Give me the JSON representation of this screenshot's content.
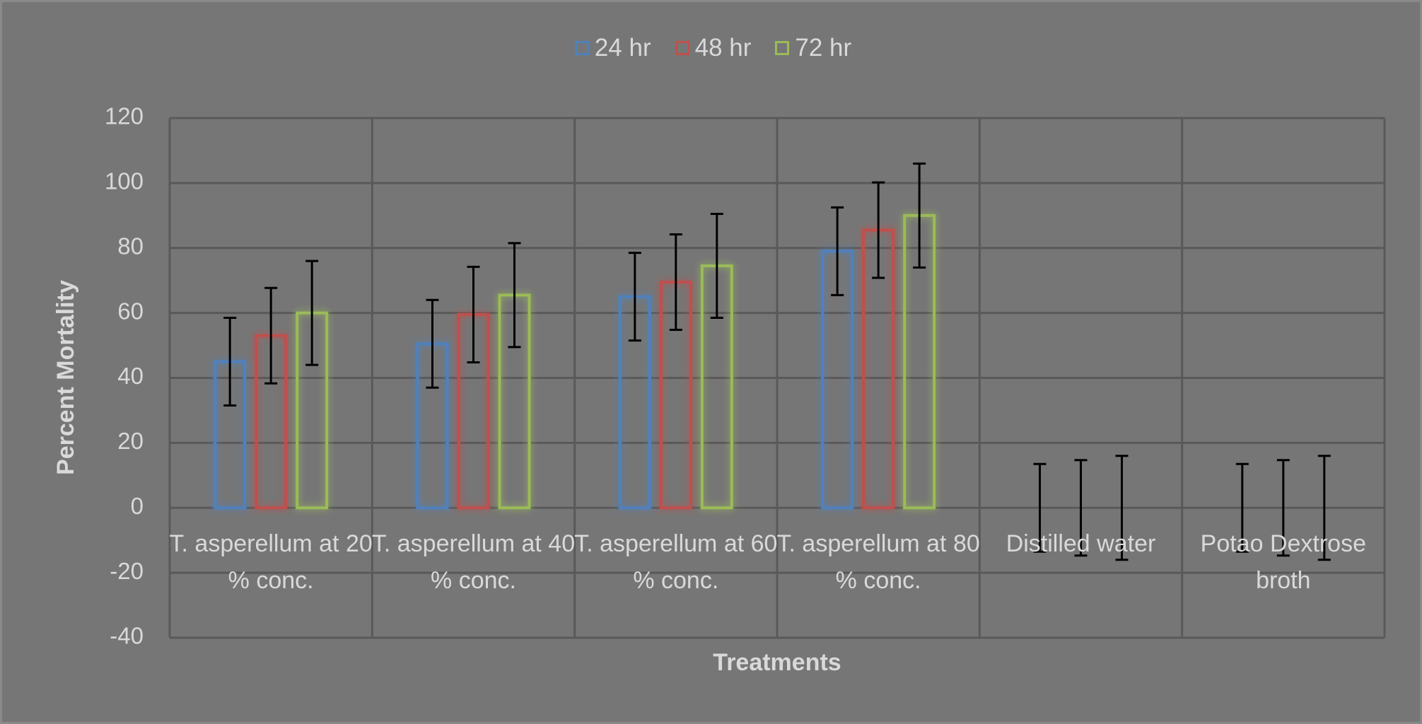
{
  "chart_data": {
    "type": "bar",
    "x_label": "Treatments",
    "y_label": "Percent Mortality",
    "categories": [
      "T. asperellum at 20 % conc.",
      "T. asperellum at 40 % conc.",
      "T. asperellum at 60 % conc.",
      "T. asperellum at 80 % conc.",
      "Distilled water",
      "Potao Dextrose broth"
    ],
    "series": [
      {
        "name": "24 hr",
        "color": "#4f81bd",
        "values": [
          45,
          50.5,
          65,
          79,
          0,
          0
        ],
        "errors": [
          13.5,
          13.5,
          13.5,
          13.5,
          13.5,
          13.5
        ]
      },
      {
        "name": "48 hr",
        "color": "#c0504d",
        "values": [
          53,
          59.5,
          69.5,
          85.5,
          0,
          0
        ],
        "errors": [
          14.7,
          14.7,
          14.7,
          14.7,
          14.7,
          14.7
        ]
      },
      {
        "name": "72 hr",
        "color": "#9bbb59",
        "values": [
          60,
          65.5,
          74.5,
          90,
          0,
          0
        ],
        "errors": [
          16,
          16,
          16,
          16,
          16,
          16
        ]
      }
    ],
    "ylim": [
      -40,
      120
    ],
    "yticks": [
      -40,
      -20,
      0,
      20,
      40,
      60,
      80,
      100,
      120
    ],
    "grid": true,
    "legend": "top"
  }
}
